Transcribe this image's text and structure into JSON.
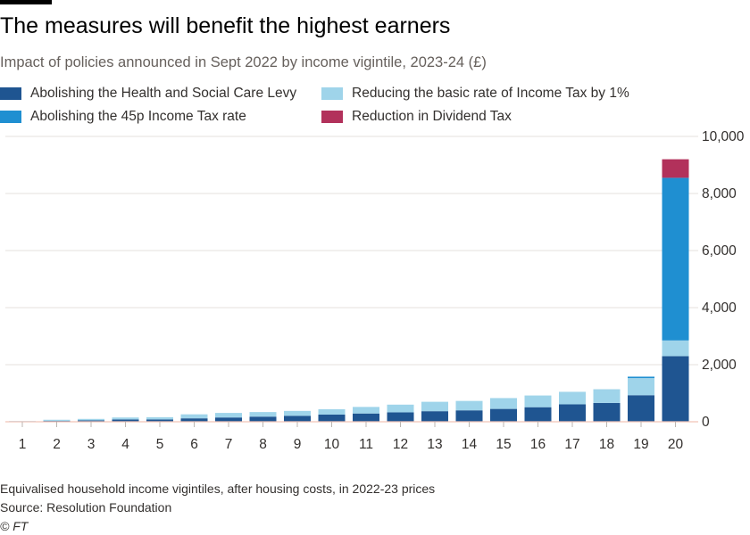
{
  "header": {
    "title": "The measures will benefit the highest earners",
    "subtitle": "Impact of policies announced in Sept 2022 by income vigintile, 2023-24 (£)"
  },
  "colors": {
    "health_levy": "#1f5591",
    "tax_45p": "#1f8fd1",
    "basic_rate": "#9fd4ea",
    "dividend": "#b2315b",
    "zero_line": "#f2c4b8",
    "grid": "#e4e0dc",
    "axis_text": "#33302e"
  },
  "chart_data": {
    "type": "bar",
    "stacked": true,
    "categories": [
      "1",
      "2",
      "3",
      "4",
      "5",
      "6",
      "7",
      "8",
      "9",
      "10",
      "11",
      "12",
      "13",
      "14",
      "15",
      "16",
      "17",
      "18",
      "19",
      "20"
    ],
    "series": [
      {
        "name": "Abolishing the Health and Social Care Levy",
        "color": "#1f5591",
        "values": [
          10,
          30,
          50,
          80,
          80,
          120,
          150,
          180,
          210,
          250,
          290,
          330,
          370,
          400,
          450,
          510,
          610,
          660,
          930,
          2300
        ]
      },
      {
        "name": "Reducing the basic rate of Income Tax by 1%",
        "color": "#9fd4ea",
        "values": [
          15,
          40,
          50,
          70,
          80,
          140,
          160,
          160,
          170,
          190,
          230,
          270,
          330,
          330,
          380,
          410,
          440,
          480,
          600,
          550
        ]
      },
      {
        "name": "Abolishing the 45p Income Tax rate",
        "color": "#1f8fd1",
        "values": [
          0,
          0,
          0,
          0,
          0,
          0,
          0,
          0,
          0,
          0,
          0,
          0,
          0,
          0,
          0,
          0,
          0,
          0,
          50,
          5700
        ]
      },
      {
        "name": "Reduction in Dividend Tax",
        "color": "#b2315b",
        "values": [
          0,
          0,
          0,
          0,
          0,
          0,
          0,
          0,
          0,
          0,
          0,
          0,
          0,
          0,
          0,
          0,
          0,
          0,
          0,
          650
        ]
      }
    ],
    "yticks": [
      "0",
      "2,000",
      "4,000",
      "6,000",
      "8,000",
      "10,000"
    ],
    "ylim": [
      0,
      10000
    ],
    "xlabel": "",
    "ylabel": "",
    "legend_position": "top",
    "grid": true
  },
  "legend": [
    {
      "label": "Abolishing the Health and Social Care Levy",
      "color": "#1f5591"
    },
    {
      "label": "Reducing the basic rate of Income Tax by 1%",
      "color": "#9fd4ea"
    },
    {
      "label": "Abolishing the 45p Income Tax rate",
      "color": "#1f8fd1"
    },
    {
      "label": "Reduction in Dividend Tax",
      "color": "#b2315b"
    }
  ],
  "footer": {
    "note": "Equivalised household income vigintiles, after housing costs, in 2022-23 prices",
    "source": "Source: Resolution Foundation",
    "copyright": "© FT"
  }
}
